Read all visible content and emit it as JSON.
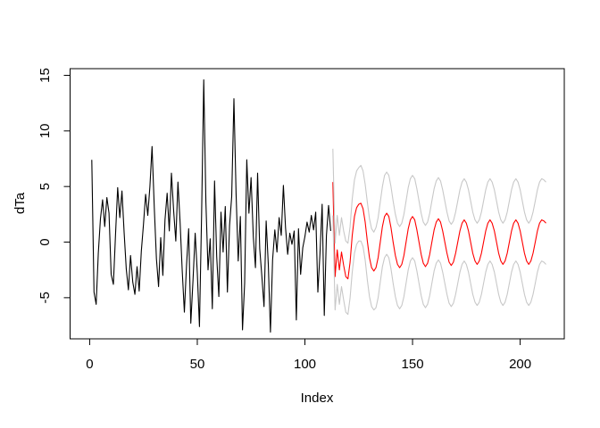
{
  "chart_data": {
    "type": "line",
    "title": "",
    "xlabel": "Index",
    "ylabel": "dTa",
    "x_ticks": [
      0,
      50,
      100,
      150,
      200
    ],
    "y_ticks": [
      -5,
      0,
      5,
      10,
      15
    ],
    "xlim": [
      -9.1,
      220.5
    ],
    "ylim": [
      -8.7,
      15.6
    ],
    "grid": false,
    "legend": "none",
    "background": "#ffffff",
    "frame_color": "#000000",
    "colors": {
      "observed": "#000000",
      "forecast": "#ff0000",
      "band": "#c8c8c8"
    },
    "series": [
      {
        "name": "observed",
        "color_key": "observed",
        "x_start": 1,
        "values": [
          7.4,
          -4.5,
          -5.6,
          -1.0,
          2.1,
          3.8,
          1.4,
          4.0,
          2.6,
          -2.9,
          -3.8,
          0.7,
          4.9,
          2.2,
          4.6,
          0.9,
          -2.4,
          -4.3,
          -1.2,
          -3.6,
          -4.7,
          -2.2,
          -4.4,
          -0.8,
          1.6,
          4.3,
          2.4,
          5.0,
          8.6,
          3.1,
          -1.5,
          -4.0,
          0.4,
          -3.0,
          2.0,
          4.4,
          1.0,
          6.2,
          2.8,
          0.1,
          5.4,
          1.8,
          -2.6,
          -6.3,
          -2.1,
          1.2,
          -7.3,
          -3.4,
          0.8,
          -2.8,
          -7.6,
          2.5,
          14.6,
          3.6,
          -2.5,
          0.3,
          -6.0,
          5.5,
          -1.3,
          -4.9,
          2.7,
          -0.9,
          3.2,
          -4.5,
          1.5,
          4.1,
          12.9,
          4.4,
          -1.7,
          2.3,
          -7.9,
          -3.7,
          7.4,
          2.6,
          5.8,
          0.5,
          -2.3,
          6.2,
          -0.6,
          -3.1,
          -5.8,
          1.9,
          -2.0,
          -8.1,
          -1.6,
          1.1,
          -0.9,
          2.2,
          0.6,
          5.1,
          1.3,
          -1.1,
          0.8,
          -0.2,
          1.0,
          -7.0,
          1.2,
          -2.9,
          -0.5,
          0.5,
          1.8,
          0.9,
          2.4,
          1.1,
          2.7,
          -4.5,
          -1.0,
          3.4,
          -6.6,
          0.6,
          3.3,
          1.0
        ]
      },
      {
        "name": "forecast",
        "color_key": "forecast",
        "x_start": 113,
        "values": [
          5.4,
          -3.1,
          -0.7,
          -2.5,
          -0.9,
          -2.1,
          -3.1,
          -3.3,
          -1.8,
          0.6,
          2.3,
          3.1,
          3.4,
          3.5,
          3.0,
          1.8,
          0.1,
          -1.4,
          -2.3,
          -2.6,
          -2.3,
          -1.4,
          0.0,
          1.4,
          2.3,
          2.6,
          2.3,
          1.3,
          0.0,
          -1.2,
          -2.0,
          -2.3,
          -2.0,
          -1.2,
          0.0,
          1.2,
          2.0,
          2.3,
          2.0,
          1.1,
          0.0,
          -1.1,
          -1.9,
          -2.2,
          -1.9,
          -1.1,
          0.0,
          1.1,
          1.8,
          2.1,
          1.8,
          1.0,
          0.0,
          -1.0,
          -1.8,
          -2.1,
          -1.8,
          -1.0,
          0.0,
          1.0,
          1.7,
          2.0,
          1.7,
          1.0,
          0.0,
          -1.0,
          -1.7,
          -2.0,
          -1.7,
          -1.0,
          0.0,
          1.0,
          1.7,
          2.0,
          1.7,
          1.0,
          0.0,
          -1.0,
          -1.7,
          -2.0,
          -1.7,
          -1.0,
          0.0,
          1.0,
          1.7,
          2.0,
          1.7,
          1.0,
          0.0,
          -1.0,
          -1.7,
          -2.0,
          -1.7,
          -1.0,
          0.0,
          1.0,
          1.7,
          2.0,
          1.9,
          1.7
        ]
      },
      {
        "name": "upper_band",
        "color_key": "band",
        "x_start": 113,
        "values": [
          8.4,
          -0.1,
          2.4,
          0.6,
          2.2,
          1.0,
          0.1,
          -0.1,
          1.4,
          3.9,
          5.6,
          6.4,
          6.7,
          6.9,
          6.4,
          5.2,
          3.6,
          2.1,
          1.2,
          0.9,
          1.3,
          2.2,
          3.6,
          5.0,
          6.0,
          6.3,
          6.0,
          5.0,
          3.7,
          2.5,
          1.7,
          1.4,
          1.7,
          2.5,
          3.7,
          4.9,
          5.7,
          6.0,
          5.7,
          4.8,
          3.7,
          2.6,
          1.8,
          1.5,
          1.8,
          2.6,
          3.7,
          4.8,
          5.5,
          5.8,
          5.5,
          4.7,
          3.7,
          2.7,
          1.9,
          1.6,
          1.9,
          2.7,
          3.7,
          4.7,
          5.4,
          5.7,
          5.4,
          4.7,
          3.7,
          2.7,
          2.0,
          1.7,
          2.0,
          2.7,
          3.7,
          4.7,
          5.4,
          5.7,
          5.4,
          4.7,
          3.7,
          2.7,
          2.0,
          1.7,
          2.0,
          2.7,
          3.7,
          4.7,
          5.4,
          5.7,
          5.4,
          4.7,
          3.7,
          2.7,
          2.0,
          1.7,
          2.0,
          2.7,
          3.7,
          4.7,
          5.4,
          5.7,
          5.6,
          5.4
        ]
      },
      {
        "name": "lower_band",
        "color_key": "band",
        "x_start": 113,
        "values": [
          2.4,
          -6.1,
          -3.8,
          -5.6,
          -4.0,
          -5.2,
          -6.3,
          -6.5,
          -5.0,
          -2.7,
          -1.0,
          -0.2,
          0.1,
          0.1,
          -0.4,
          -1.6,
          -3.4,
          -4.9,
          -5.8,
          -6.1,
          -5.9,
          -5.0,
          -3.6,
          -2.2,
          -1.4,
          -1.1,
          -1.4,
          -2.4,
          -3.7,
          -4.9,
          -5.7,
          -6.0,
          -5.7,
          -4.9,
          -3.7,
          -2.5,
          -1.7,
          -1.4,
          -1.7,
          -2.6,
          -3.7,
          -4.8,
          -5.6,
          -5.9,
          -5.6,
          -4.8,
          -3.7,
          -2.6,
          -1.9,
          -1.6,
          -1.9,
          -2.7,
          -3.7,
          -4.7,
          -5.5,
          -5.8,
          -5.5,
          -4.7,
          -3.7,
          -2.7,
          -2.0,
          -1.7,
          -2.0,
          -2.7,
          -3.7,
          -4.7,
          -5.4,
          -5.7,
          -5.4,
          -4.7,
          -3.7,
          -2.7,
          -2.0,
          -1.7,
          -2.0,
          -2.7,
          -3.7,
          -4.7,
          -5.4,
          -5.7,
          -5.4,
          -4.7,
          -3.7,
          -2.7,
          -2.0,
          -1.7,
          -2.0,
          -2.7,
          -3.7,
          -4.7,
          -5.4,
          -5.7,
          -5.4,
          -4.7,
          -3.7,
          -2.7,
          -2.0,
          -1.7,
          -1.8,
          -2.0
        ]
      }
    ]
  }
}
